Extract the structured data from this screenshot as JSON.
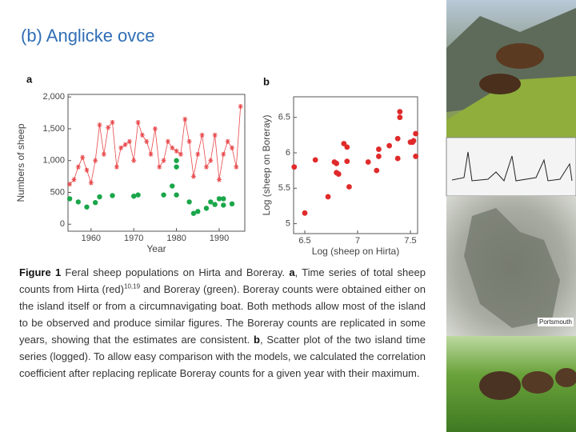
{
  "slide_title": "(b) Anglicke ovce",
  "chart_data": [
    {
      "type": "line",
      "panel_label": "a",
      "xlabel": "Year",
      "ylabel": "Numbers of sheep",
      "xlim": [
        1954.6,
        1996
      ],
      "xticks": [
        1960,
        1970,
        1980,
        1990
      ],
      "ylim": [
        -110,
        2040
      ],
      "yticks": [
        0,
        500,
        {
          "value": 1000,
          "label": "1,000"
        },
        {
          "value": 1500,
          "label": "1,500"
        },
        {
          "value": 2000,
          "label": "2,000"
        }
      ],
      "series": [
        {
          "color": "#e8474a",
          "marker": "star",
          "line": true,
          "x": [
            1955,
            1956,
            1957,
            1958,
            1959,
            1960,
            1961,
            1962,
            1963,
            1964,
            1965,
            1966,
            1967,
            1968,
            1969,
            1970,
            1971,
            1972,
            1973,
            1974,
            1975,
            1976,
            1977,
            1978,
            1979,
            1980,
            1981,
            1982,
            1983,
            1984,
            1985,
            1986,
            1987,
            1988,
            1989,
            1990,
            1991,
            1992,
            1993,
            1994,
            1995
          ],
          "values": [
            630,
            700,
            900,
            1050,
            850,
            650,
            1000,
            1560,
            1100,
            1520,
            1600,
            900,
            1200,
            1250,
            1300,
            1000,
            1600,
            1400,
            1300,
            1100,
            1500,
            900,
            1000,
            1300,
            1200,
            1150,
            1100,
            1650,
            1300,
            750,
            1100,
            1400,
            900,
            1000,
            1400,
            700,
            1100,
            1300,
            1200,
            900,
            1850
          ]
        },
        {
          "color": "#1aa64a",
          "marker": "circle",
          "line": false,
          "x": [
            1955,
            1957,
            1959,
            1961,
            1962,
            1965,
            1970,
            1971,
            1977,
            1979,
            1980,
            1980,
            1980,
            1983,
            1984,
            1985,
            1987,
            1988,
            1989,
            1990,
            1991,
            1991,
            1993
          ],
          "values": [
            400,
            350,
            270,
            340,
            430,
            450,
            440,
            460,
            460,
            600,
            1000,
            900,
            460,
            350,
            170,
            200,
            250,
            350,
            310,
            400,
            400,
            300,
            320
          ]
        }
      ]
    },
    {
      "type": "scatter",
      "panel_label": "b",
      "xlabel": "Log (sheep on Hirta)",
      "ylabel": "Log (sheep on Boreray)",
      "xlim": [
        6.394,
        7.568
      ],
      "xticks": [
        6.5,
        7,
        7.5
      ],
      "ylim": [
        4.86,
        6.79
      ],
      "yticks": [
        5,
        5.5,
        6,
        6.5
      ],
      "color": "#e02a2a",
      "x": [
        6.4,
        6.5,
        6.6,
        6.72,
        6.78,
        6.8,
        6.8,
        6.82,
        6.87,
        6.9,
        6.9,
        6.92,
        7.1,
        7.18,
        7.2,
        7.2,
        7.3,
        7.38,
        7.38,
        7.4,
        7.4,
        7.52,
        7.53,
        7.55,
        7.55,
        7.5
      ],
      "values": [
        5.8,
        5.15,
        5.9,
        5.38,
        5.87,
        5.72,
        5.85,
        5.7,
        6.13,
        6.08,
        5.88,
        5.52,
        5.87,
        5.75,
        5.95,
        6.05,
        6.1,
        5.92,
        6.2,
        6.5,
        6.58,
        6.15,
        6.17,
        6.27,
        5.95,
        6.15
      ]
    }
  ],
  "caption": [
    "Figure 1",
    "Feral sheep populations on Hirta and Boreray.",
    "a",
    ", Time series of total sheep counts from Hirta (red)",
    "10,19",
    "and Boreray (green). Boreray counts were obtained either on the island itself or from a circumnavigating boat. Both methods allow most of the island to be observed and produce similar figures. The Boreray counts are replicated in some years, showing that the estimates are consistent.",
    "b",
    ", Scatter plot of the two island time series (logged). To allow easy comparison with the models, we calculated the correlation coefficient after replacing replicate Boreray counts for a given year with their maximum."
  ],
  "map_label": "Portsmouth"
}
